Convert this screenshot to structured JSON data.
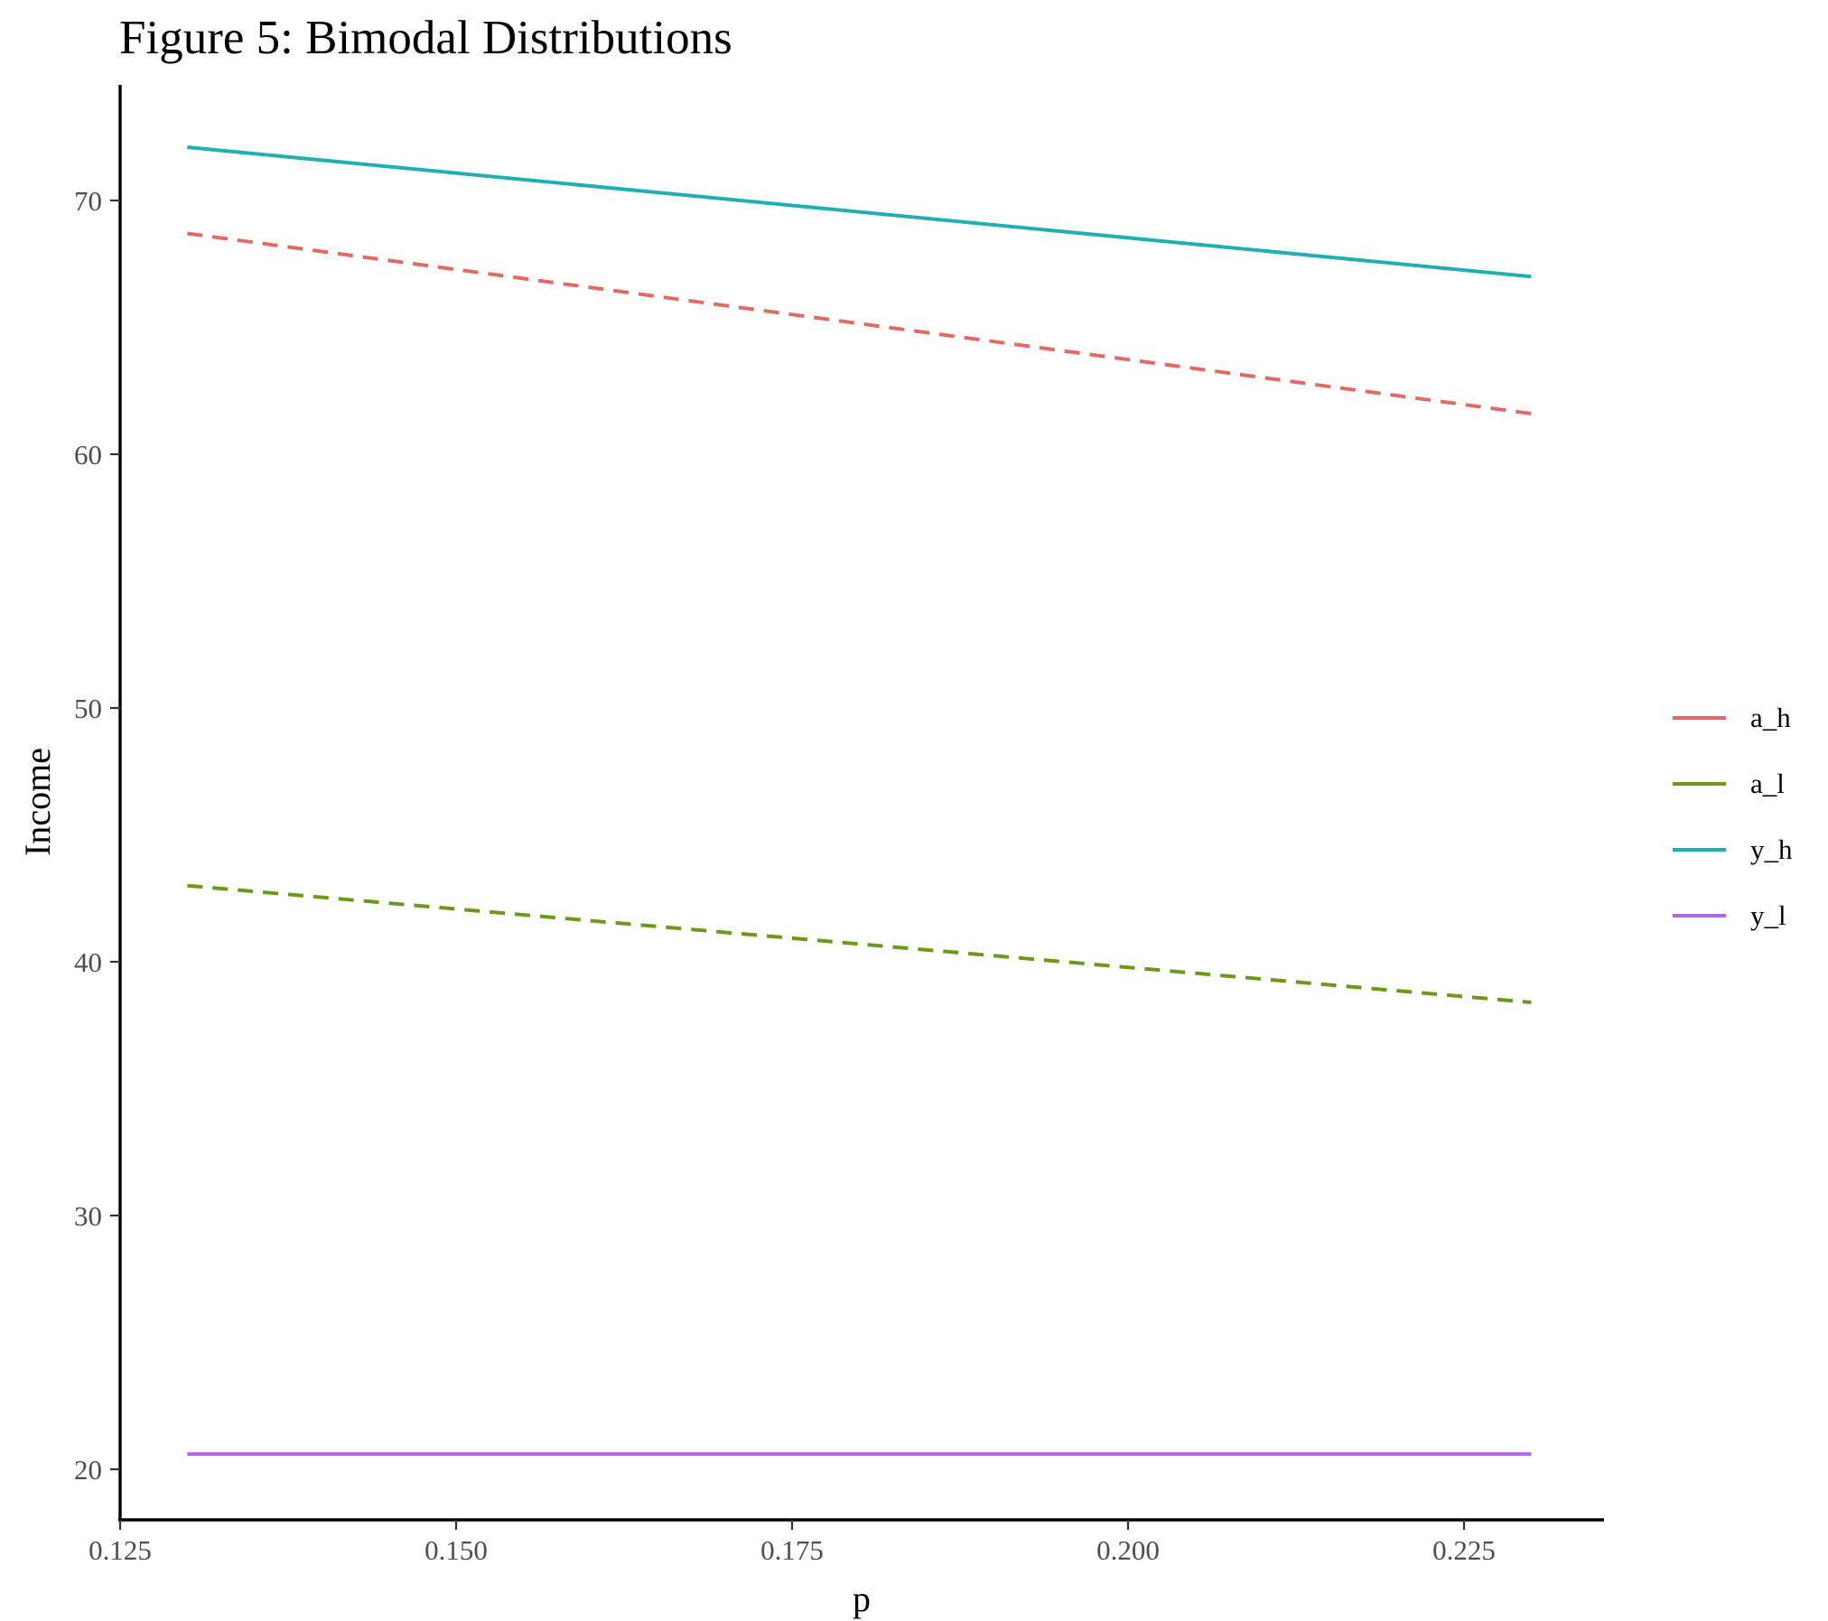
{
  "chart_data": {
    "type": "line",
    "title": "Figure 5: Bimodal Distributions",
    "xlabel": "p",
    "ylabel": "Income",
    "xlim": [
      0.125,
      0.235
    ],
    "ylim": [
      18,
      74.5
    ],
    "x_ticks": [
      0.125,
      0.15,
      0.175,
      0.2,
      0.225
    ],
    "x_tick_labels": [
      "0.125",
      "0.150",
      "0.175",
      "0.200",
      "0.225"
    ],
    "y_ticks": [
      20,
      30,
      40,
      50,
      60,
      70
    ],
    "y_tick_labels": [
      "20",
      "30",
      "40",
      "50",
      "60",
      "70"
    ],
    "grid": false,
    "legend_position": "right",
    "series": [
      {
        "name": "a_h",
        "color": "#E36A63",
        "dash": "dashed",
        "x": [
          0.13,
          0.23
        ],
        "y": [
          68.7,
          61.6
        ]
      },
      {
        "name": "a_l",
        "color": "#6B9A1A",
        "dash": "dashed",
        "x": [
          0.13,
          0.23
        ],
        "y": [
          43.0,
          38.4
        ]
      },
      {
        "name": "y_h",
        "color": "#22AFB3",
        "dash": "solid",
        "x": [
          0.13,
          0.23
        ],
        "y": [
          72.1,
          67.0
        ]
      },
      {
        "name": "y_l",
        "color": "#B266E6",
        "dash": "solid",
        "x": [
          0.13,
          0.23
        ],
        "y": [
          20.6,
          20.6
        ]
      }
    ]
  }
}
